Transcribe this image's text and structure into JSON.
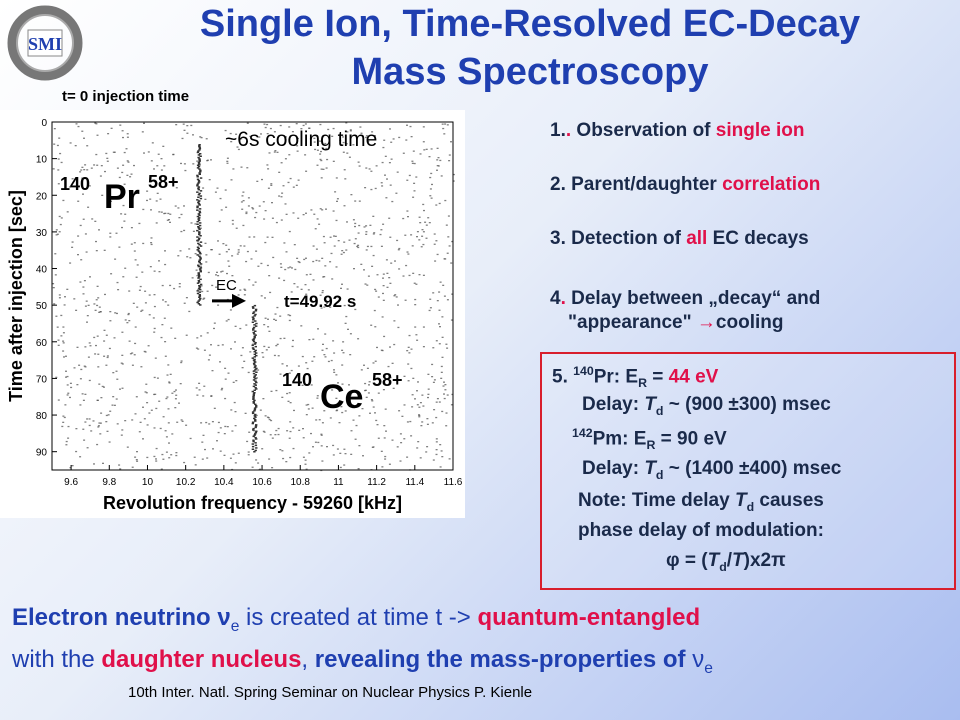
{
  "title_line1": "Single Ion, Time-Resolved EC-Decay",
  "title_line2": "Mass Spectroscopy",
  "logo_text": "SMI",
  "injection_label": "t= 0 injection time",
  "cooling_label": "~6s cooling time",
  "list": {
    "item1": {
      "num": "1.",
      "dot": ".",
      "pre": " Observation of ",
      "hl": "single ion"
    },
    "item2": {
      "pre": "2. Parent/daughter ",
      "hl": "correlation"
    },
    "item3": {
      "pre": "3. Detection of ",
      "hl": "all",
      "post": " EC decays"
    },
    "item4": {
      "num": "4",
      "dot": ".",
      "line1": " Delay between „decay“ and",
      "line2a": "\"appearance\" ",
      "arrow": "→",
      "line2b": "cooling"
    }
  },
  "box": {
    "l1_num": "5. ",
    "l1_mass": "140",
    "l1_el": "Pr: E",
    "l1_sub": "R",
    "l1_eq": " = ",
    "l1_val": "44 eV",
    "l2_pre": "Delay: ",
    "l2_t": "T",
    "l2_sub": "d",
    "l2_val": " ~ (900 ±300) msec",
    "l3_mass": "142",
    "l3_el": "Pm: E",
    "l3_sub": "R",
    "l3_val": " = 90 eV",
    "l4_pre": "Delay: ",
    "l4_t": "T",
    "l4_sub": "d",
    "l4_val": " ~ (1400 ±400) msec",
    "l5_pre": "Note: Time delay ",
    "l5_t": "T",
    "l5_sub": "d",
    "l5_post": " causes",
    "l6": "phase delay of modulation:",
    "l7_phi": "φ",
    "l7_a": " = (",
    "l7_t": "T",
    "l7_sub": "d",
    "l7_b": "/",
    "l7_T": "T",
    "l7_c": ")x2",
    "l7_pi": "π"
  },
  "bottom": {
    "l1_a": "Electron neutrino ν",
    "l1_sub": "e",
    "l1_b": " is created at time t -> ",
    "l1_c": "quantum-entangled",
    "l2_a": "with the ",
    "l2_b": "daughter nucleus",
    "l2_c": ", ",
    "l2_d": "revealing the mass-properties of ",
    "l2_nu": "ν",
    "l2_sub": "e"
  },
  "footer": "10th Inter. Natl. Spring Seminar on Nuclear Physics   P. Kienle",
  "chart_data": {
    "type": "scatter",
    "xlabel": "Revolution frequency - 59260 [kHz]",
    "ylabel": "Time after injection [sec]",
    "xlim": [
      9.5,
      11.6
    ],
    "ylim": [
      0,
      95
    ],
    "x_ticks": [
      "9.6",
      "9.8",
      "10",
      "10.2",
      "10.4",
      "10.6",
      "10.8",
      "11",
      "11.2",
      "11.4",
      "11.6"
    ],
    "y_ticks": [
      "0",
      "10",
      "20",
      "30",
      "40",
      "50",
      "60",
      "70",
      "80",
      "90"
    ],
    "series": [
      {
        "name": "140Pr58+",
        "x_value": 10.27,
        "y_range": [
          6,
          49.92
        ]
      },
      {
        "name": "140Ce58+",
        "x_value": 10.56,
        "y_range": [
          49.92,
          90
        ]
      }
    ],
    "annotations": {
      "parent_mass": "140",
      "parent_el": "Pr",
      "parent_charge": "58+",
      "daughter_mass": "140",
      "daughter_el": "Ce",
      "daughter_charge": "58+",
      "arrow_label": "EC",
      "decay_time": "t=49.92 s"
    },
    "colors": {
      "points": "#555555",
      "text": "#000000"
    }
  }
}
